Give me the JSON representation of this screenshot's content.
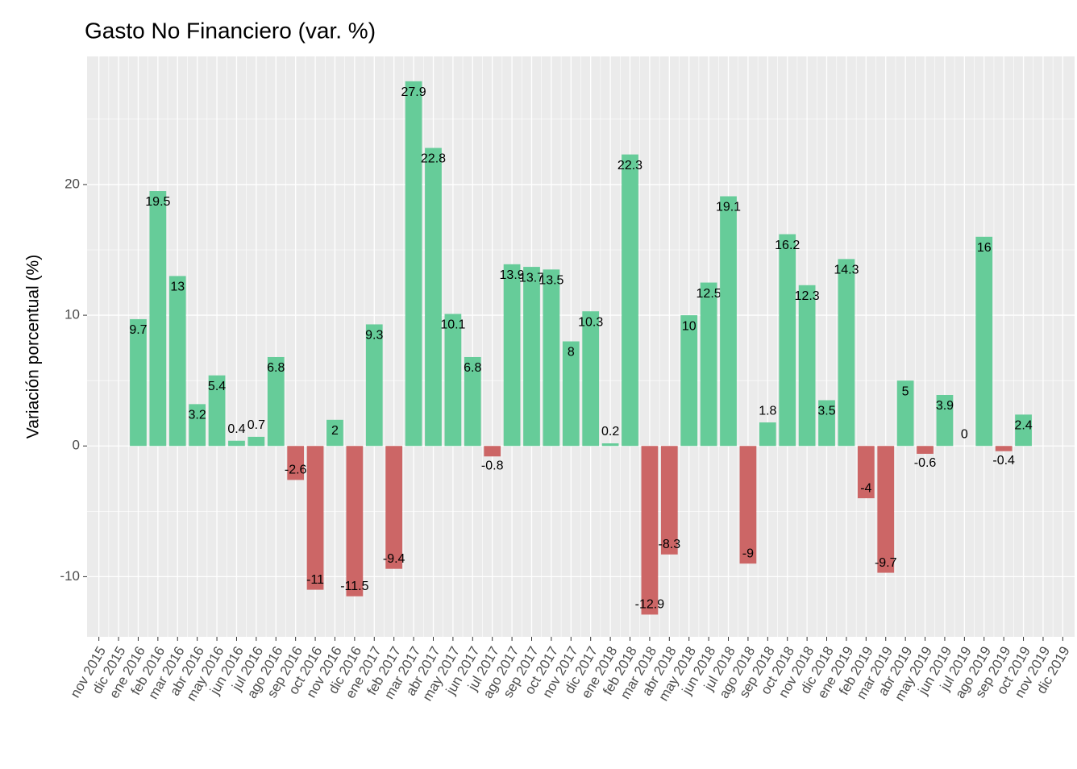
{
  "chart_data": {
    "type": "bar",
    "title": "Gasto No Financiero (var. %)",
    "y_label": "Variación porcentual (%)",
    "categories": [
      "nov 2015",
      "dic 2015",
      "ene 2016",
      "feb 2016",
      "mar 2016",
      "abr 2016",
      "may 2016",
      "jun 2016",
      "jul 2016",
      "ago 2016",
      "sep 2016",
      "oct 2016",
      "nov 2016",
      "dic 2016",
      "ene 2017",
      "feb 2017",
      "mar 2017",
      "abr 2017",
      "may 2017",
      "jun 2017",
      "jul 2017",
      "ago 2017",
      "sep 2017",
      "oct 2017",
      "nov 2017",
      "dic 2017",
      "ene 2018",
      "feb 2018",
      "mar 2018",
      "abr 2018",
      "may 2018",
      "jun 2018",
      "jul 2018",
      "ago 2018",
      "sep 2018",
      "oct 2018",
      "nov 2018",
      "dic 2018",
      "ene 2019",
      "feb 2019",
      "mar 2019",
      "abr 2019",
      "may 2019",
      "jun 2019",
      "jul 2019",
      "ago 2019",
      "sep 2019",
      "oct 2019",
      "nov 2019",
      "dic 2019"
    ],
    "values": [
      null,
      null,
      9.7,
      19.5,
      13,
      3.2,
      5.4,
      0.4,
      0.7,
      6.8,
      -2.6,
      -11,
      2,
      -11.5,
      9.3,
      -9.4,
      27.9,
      22.8,
      10.1,
      6.8,
      -0.8,
      13.9,
      13.7,
      13.5,
      8,
      10.3,
      0.2,
      22.3,
      -12.9,
      -8.3,
      10,
      12.5,
      19.1,
      -9,
      1.8,
      16.2,
      12.3,
      3.5,
      14.3,
      -4,
      -9.7,
      5,
      -0.6,
      3.9,
      0,
      16,
      -0.4,
      2.4,
      null,
      null
    ],
    "positive_color": "#66cc99",
    "negative_color": "#cc6666",
    "ylim": [
      -14.6,
      29.8
    ],
    "yticks": [
      -10,
      0,
      10,
      20
    ],
    "grid": true
  }
}
